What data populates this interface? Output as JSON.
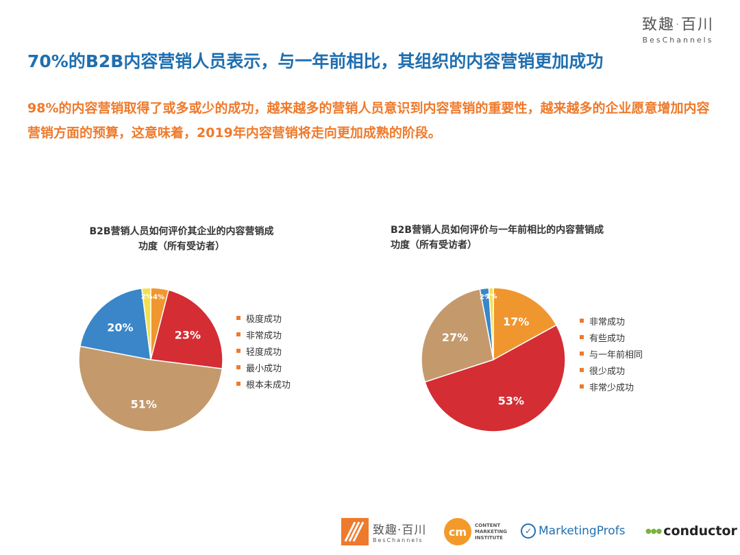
{
  "brand": {
    "name_zh": "致趣·百川",
    "name_en": "BesChannels"
  },
  "headline": "70%的B2B内容营销人员表示，与一年前相比，其组织的内容营销更加成功",
  "subheadline": "98%的内容营销取得了或多或少的成功，越来越多的营销人员意识到内容营销的重要性，越来越多的企业愿意增加内容营销方面的预算，这意味着，2019年内容营销将走向更加成熟的阶段。",
  "chart_data": [
    {
      "type": "pie",
      "title_line1": "B2B营销人员如何评价其企业的内容营销成",
      "title_line2": "功度（所有受访者）",
      "categories": [
        "极度成功",
        "非常成功",
        "轻度成功",
        "最小成功",
        "根本未成功"
      ],
      "values": [
        4,
        23,
        51,
        20,
        2
      ],
      "labels": [
        "4%",
        "23%",
        "51%",
        "20%",
        "2%"
      ],
      "colors": [
        "#f0962f",
        "#d42d34",
        "#c49a6c",
        "#3a86c8",
        "#f4e04d"
      ],
      "legend_position": "right"
    },
    {
      "type": "pie",
      "title_line1": "B2B营销人员如何评价与一年前相比的内容营销成",
      "title_line2": "功度（所有受访者）",
      "categories": [
        "非常成功",
        "有些成功",
        "与一年前相同",
        "很少成功",
        "非常少成功"
      ],
      "values": [
        17,
        53,
        27,
        2,
        1
      ],
      "labels": [
        "17%",
        "53%",
        "27%",
        "2%",
        "1%"
      ],
      "colors": [
        "#f0962f",
        "#d42d34",
        "#c49a6c",
        "#3a86c8",
        "#f4e04d"
      ],
      "legend_position": "right"
    }
  ],
  "footer_logos": {
    "beschannels_zh": "致趣·百川",
    "beschannels_en": "BesChannels",
    "cmi_mark": "cm",
    "cmi_text": [
      "CONTENT",
      "MARKETING",
      "INSTITUTE"
    ],
    "marketingprofs": "MarketingProfs",
    "conductor": "conductor"
  }
}
